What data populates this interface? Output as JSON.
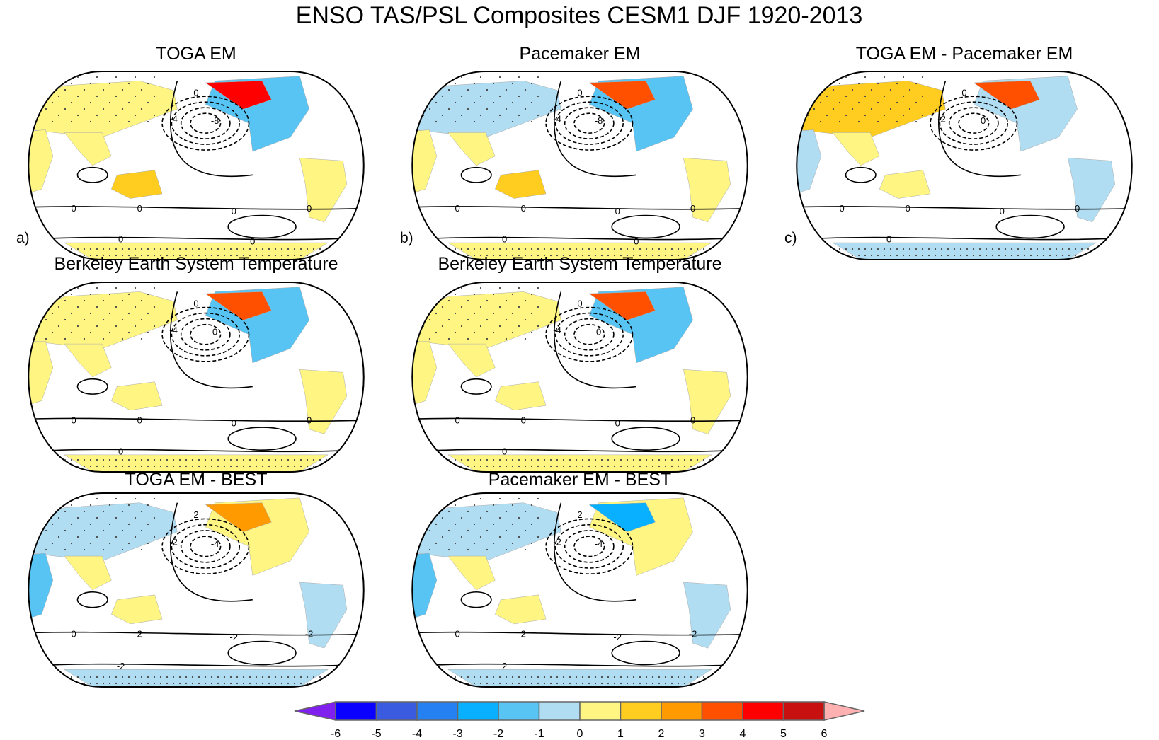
{
  "title": "ENSO TAS/PSL Composites CESM1 DJF 1920-2013",
  "panels": [
    {
      "title": "TOGA EM",
      "letter": "a)",
      "contour_labels": [
        "0",
        "-4",
        "-8",
        "0",
        "0",
        "0",
        "0",
        "0",
        "0"
      ]
    },
    {
      "title": "Pacemaker EM",
      "letter": "b)",
      "contour_labels": [
        "0",
        "-4",
        "-8",
        "0",
        "0",
        "0",
        "0",
        "0",
        "0"
      ]
    },
    {
      "title": "TOGA EM - Pacemaker EM",
      "letter": "c)",
      "contour_labels": [
        "0",
        "-2",
        "0",
        "0",
        "0",
        "0",
        "0",
        "0"
      ]
    },
    {
      "title": "Berkeley Earth System Temperature",
      "letter": "",
      "contour_labels": [
        "0",
        "-4",
        "0",
        "0",
        "0",
        "0",
        "0",
        "0"
      ]
    },
    {
      "title": "Berkeley Earth System Temperature",
      "letter": "",
      "contour_labels": [
        "0",
        "-4",
        "0",
        "0",
        "0",
        "0",
        "0",
        "0"
      ]
    },
    {
      "title": "TOGA EM - BEST",
      "letter": "",
      "contour_labels": [
        "2",
        "-2",
        "-4",
        "0",
        "2",
        "-2",
        "-2",
        "-2"
      ]
    },
    {
      "title": "Pacemaker EM - BEST",
      "letter": "",
      "contour_labels": [
        "2",
        "-2",
        "-4",
        "0",
        "2",
        "-2",
        "-2",
        "2"
      ]
    }
  ],
  "colorbar": {
    "labels": [
      "-6",
      "-5",
      "-4",
      "-3",
      "-2",
      "-1",
      "0",
      "1",
      "2",
      "3",
      "4",
      "5",
      "6"
    ],
    "low_color": "#8020ee",
    "high_color": "#ffb0b0",
    "colors": [
      "#0a00ff",
      "#3a5ae0",
      "#2580f2",
      "#08b0ff",
      "#58c4f4",
      "#b0ddf2",
      "#fff582",
      "#ffcc20",
      "#ff9a00",
      "#ff5000",
      "#ff0000",
      "#c81010"
    ]
  }
}
